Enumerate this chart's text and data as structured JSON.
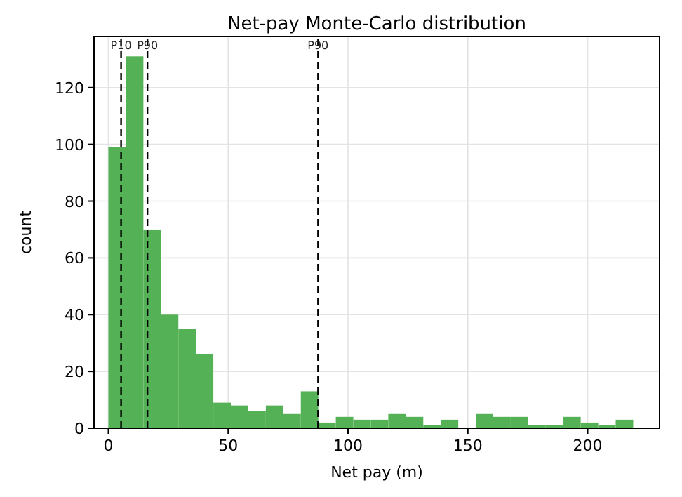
{
  "chart_data": {
    "type": "histogram",
    "title": "Net-pay Monte-Carlo distribution",
    "xlabel": "Net pay (m)",
    "ylabel": "count",
    "bins": [
      0,
      7.3,
      14.6,
      21.9,
      29.2,
      36.5,
      43.8,
      51.1,
      58.4,
      65.7,
      73,
      80.3,
      87.6,
      94.9,
      102.2,
      109.5,
      116.8,
      124.1,
      131.4,
      138.7,
      146,
      153.3,
      160.6,
      167.9,
      175.2,
      182.5,
      189.8,
      197.1,
      204.4,
      211.7,
      219
    ],
    "values": [
      99,
      131,
      70,
      40,
      35,
      26,
      9,
      8,
      6,
      8,
      5,
      13,
      2,
      4,
      3,
      3,
      5,
      4,
      1,
      3,
      0,
      5,
      4,
      4,
      1,
      1,
      4,
      2,
      1,
      3
    ],
    "color": "#55b155",
    "xlim": [
      -6,
      230
    ],
    "xticks": [
      0,
      50,
      100,
      150,
      200
    ],
    "ylim": [
      0,
      138
    ],
    "yticks": [
      0,
      20,
      40,
      60,
      80,
      100,
      120
    ],
    "grid": true,
    "ref_lines": [
      {
        "axis": "x",
        "value": 5.3,
        "label": "P10",
        "color": "#000000",
        "line_style": "dashed"
      },
      {
        "axis": "x",
        "value": 16.3,
        "label": "P90",
        "color": "#000000",
        "line_style": "dashed"
      },
      {
        "axis": "x",
        "value": 87.5,
        "label": "P90",
        "color": "#000000",
        "line_style": "dashed"
      }
    ]
  }
}
